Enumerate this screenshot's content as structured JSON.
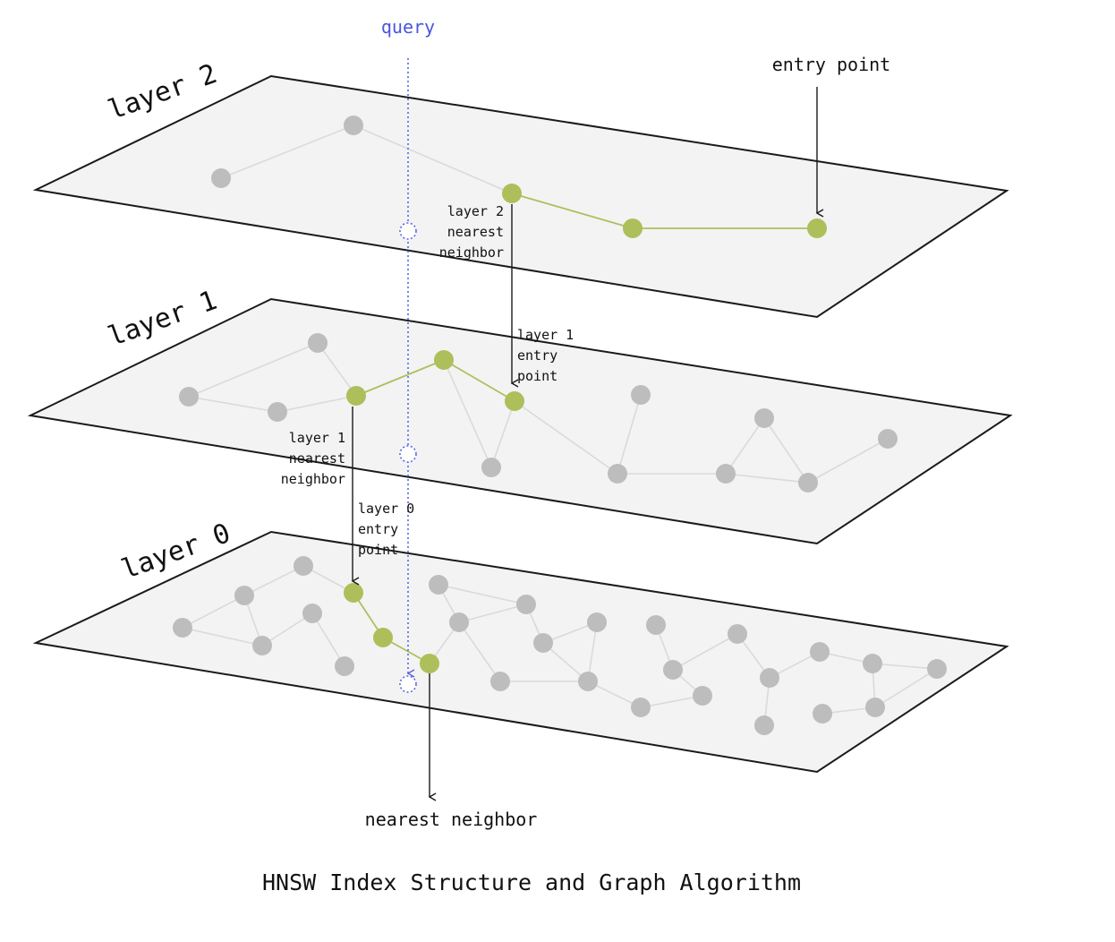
{
  "query_label": "query",
  "entry_point_label": "entry point",
  "nearest_neighbor_label": "nearest neighbor",
  "caption": "HNSW Index Structure and Graph Algorithm",
  "layers": [
    {
      "id": "layer2",
      "title": "layer 2"
    },
    {
      "id": "layer1",
      "title": "layer 1"
    },
    {
      "id": "layer0",
      "title": "layer 0"
    }
  ],
  "annotations": {
    "layer2_nearest": [
      "layer 2",
      "nearest",
      "neighbor"
    ],
    "layer1_entry": [
      "layer 1",
      "entry",
      "point"
    ],
    "layer1_nearest": [
      "layer 1",
      "nearest",
      "neighbor"
    ],
    "layer0_entry": [
      "layer 0",
      "entry",
      "point"
    ]
  },
  "colors": {
    "node": "#bdbdbd",
    "path_node": "#adbf5a",
    "query": "#5a63e6",
    "plane": "#f3f3f3",
    "edge": "#dadada"
  }
}
